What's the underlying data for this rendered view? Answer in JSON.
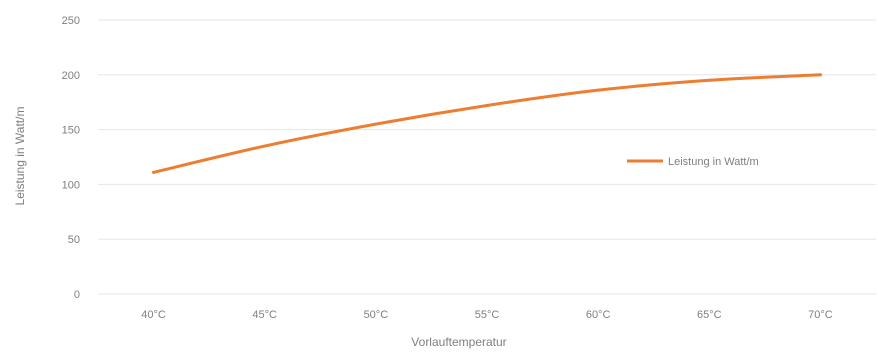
{
  "chart_data": {
    "type": "line",
    "title": "",
    "xlabel": "Vorlauftemperatur",
    "ylabel": "Leistung in Watt/m",
    "categories": [
      "40°C",
      "45°C",
      "50°C",
      "55°C",
      "60°C",
      "65°C",
      "70°C"
    ],
    "series": [
      {
        "name": "Leistung in Watt/m",
        "values": [
          111,
          135,
          155,
          172,
          186,
          195,
          200
        ],
        "color": "#ed7d31"
      }
    ],
    "ylim": [
      0,
      250
    ],
    "yticks": [
      0,
      50,
      100,
      150,
      200,
      250
    ],
    "grid": "horizontal",
    "legend": "right",
    "gridColor": "#e6e6e6",
    "textColor": "#7f7f7f"
  }
}
